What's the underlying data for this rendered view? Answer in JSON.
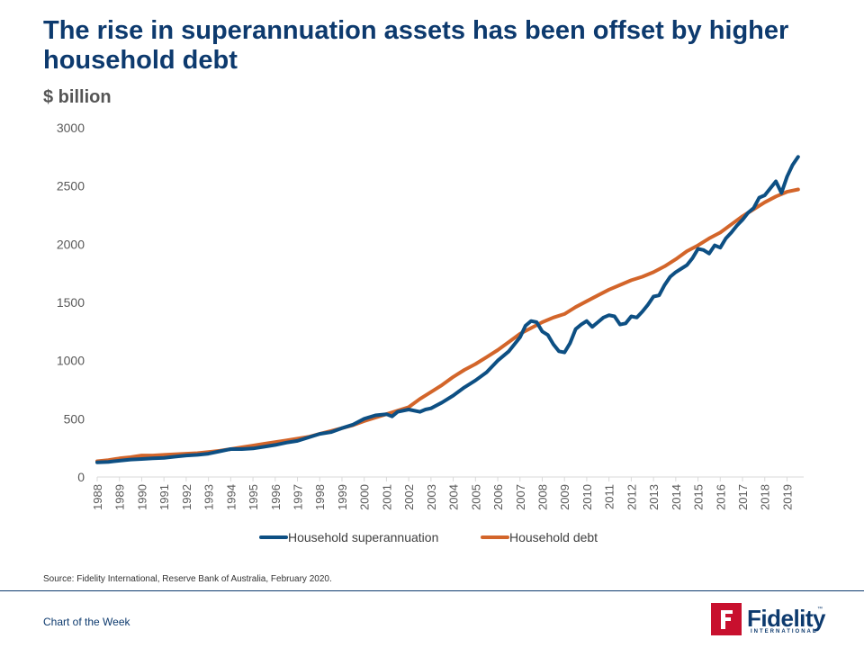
{
  "header": {
    "title": "The rise in superannuation assets has been offset by higher household debt",
    "subtitle": "$ billion"
  },
  "footer": {
    "source": "Source: Fidelity International, Reserve Bank of Australia, February 2020.",
    "label": "Chart of the Week",
    "logo_text": "Fidelity",
    "logo_subtext": "INTERNATIONAL",
    "logo_tm": "™"
  },
  "colors": {
    "title": "#0d3a6e",
    "super": "#0d4f83",
    "debt": "#d3652a",
    "axis": "#d9d9d9",
    "brand_red": "#c8102e"
  },
  "chart_data": {
    "type": "line",
    "ylim": [
      0,
      3000
    ],
    "xlim": [
      1988,
      2019.75
    ],
    "y_ticks": [
      "0",
      "500",
      "1000",
      "1500",
      "2000",
      "2500",
      "3000"
    ],
    "x_ticks": [
      "1988",
      "1989",
      "1990",
      "1991",
      "1992",
      "1993",
      "1994",
      "1995",
      "1996",
      "1997",
      "1998",
      "1999",
      "2000",
      "2001",
      "2002",
      "2003",
      "2004",
      "2005",
      "2006",
      "2007",
      "2008",
      "2009",
      "2010",
      "2011",
      "2012",
      "2013",
      "2014",
      "2015",
      "2016",
      "2017",
      "2018",
      "2019"
    ],
    "legend_position": "bottom",
    "series": [
      {
        "name": "Household superannuation",
        "color": "#0d4f83",
        "points": [
          [
            1988.0,
            125
          ],
          [
            1988.5,
            130
          ],
          [
            1989.0,
            140
          ],
          [
            1989.5,
            150
          ],
          [
            1990.0,
            155
          ],
          [
            1990.5,
            160
          ],
          [
            1991.0,
            165
          ],
          [
            1991.5,
            175
          ],
          [
            1992.0,
            185
          ],
          [
            1992.5,
            190
          ],
          [
            1993.0,
            200
          ],
          [
            1993.5,
            220
          ],
          [
            1994.0,
            240
          ],
          [
            1994.5,
            240
          ],
          [
            1995.0,
            245
          ],
          [
            1995.5,
            260
          ],
          [
            1996.0,
            275
          ],
          [
            1996.5,
            295
          ],
          [
            1997.0,
            310
          ],
          [
            1997.5,
            340
          ],
          [
            1998.0,
            370
          ],
          [
            1998.5,
            385
          ],
          [
            1999.0,
            420
          ],
          [
            1999.5,
            450
          ],
          [
            2000.0,
            500
          ],
          [
            2000.5,
            530
          ],
          [
            2001.0,
            540
          ],
          [
            2001.25,
            520
          ],
          [
            2001.5,
            560
          ],
          [
            2002.0,
            580
          ],
          [
            2002.5,
            560
          ],
          [
            2002.75,
            580
          ],
          [
            2003.0,
            590
          ],
          [
            2003.5,
            640
          ],
          [
            2004.0,
            700
          ],
          [
            2004.5,
            770
          ],
          [
            2005.0,
            830
          ],
          [
            2005.5,
            900
          ],
          [
            2006.0,
            1000
          ],
          [
            2006.5,
            1080
          ],
          [
            2007.0,
            1200
          ],
          [
            2007.25,
            1300
          ],
          [
            2007.5,
            1340
          ],
          [
            2007.75,
            1330
          ],
          [
            2008.0,
            1250
          ],
          [
            2008.25,
            1220
          ],
          [
            2008.5,
            1140
          ],
          [
            2008.75,
            1080
          ],
          [
            2009.0,
            1070
          ],
          [
            2009.25,
            1150
          ],
          [
            2009.5,
            1270
          ],
          [
            2009.75,
            1310
          ],
          [
            2010.0,
            1340
          ],
          [
            2010.25,
            1290
          ],
          [
            2010.5,
            1330
          ],
          [
            2010.75,
            1370
          ],
          [
            2011.0,
            1390
          ],
          [
            2011.25,
            1380
          ],
          [
            2011.5,
            1310
          ],
          [
            2011.75,
            1320
          ],
          [
            2012.0,
            1380
          ],
          [
            2012.25,
            1370
          ],
          [
            2012.5,
            1420
          ],
          [
            2012.75,
            1480
          ],
          [
            2013.0,
            1550
          ],
          [
            2013.25,
            1560
          ],
          [
            2013.5,
            1650
          ],
          [
            2013.75,
            1720
          ],
          [
            2014.0,
            1760
          ],
          [
            2014.25,
            1790
          ],
          [
            2014.5,
            1820
          ],
          [
            2014.75,
            1880
          ],
          [
            2015.0,
            1960
          ],
          [
            2015.25,
            1950
          ],
          [
            2015.5,
            1920
          ],
          [
            2015.75,
            1990
          ],
          [
            2016.0,
            1970
          ],
          [
            2016.25,
            2050
          ],
          [
            2016.5,
            2100
          ],
          [
            2016.75,
            2160
          ],
          [
            2017.0,
            2210
          ],
          [
            2017.25,
            2270
          ],
          [
            2017.5,
            2310
          ],
          [
            2017.75,
            2400
          ],
          [
            2018.0,
            2420
          ],
          [
            2018.25,
            2480
          ],
          [
            2018.5,
            2540
          ],
          [
            2018.75,
            2440
          ],
          [
            2019.0,
            2580
          ],
          [
            2019.25,
            2680
          ],
          [
            2019.5,
            2750
          ]
        ]
      },
      {
        "name": "Household debt",
        "color": "#d3652a",
        "points": [
          [
            1988.0,
            135
          ],
          [
            1988.5,
            145
          ],
          [
            1989.0,
            160
          ],
          [
            1989.5,
            170
          ],
          [
            1990.0,
            185
          ],
          [
            1990.5,
            185
          ],
          [
            1991.0,
            190
          ],
          [
            1991.5,
            195
          ],
          [
            1992.0,
            200
          ],
          [
            1992.5,
            205
          ],
          [
            1993.0,
            215
          ],
          [
            1993.5,
            225
          ],
          [
            1994.0,
            240
          ],
          [
            1994.5,
            255
          ],
          [
            1995.0,
            270
          ],
          [
            1995.5,
            285
          ],
          [
            1996.0,
            300
          ],
          [
            1996.5,
            315
          ],
          [
            1997.0,
            330
          ],
          [
            1997.5,
            345
          ],
          [
            1998.0,
            370
          ],
          [
            1998.5,
            395
          ],
          [
            1999.0,
            420
          ],
          [
            1999.5,
            445
          ],
          [
            2000.0,
            480
          ],
          [
            2000.5,
            510
          ],
          [
            2001.0,
            540
          ],
          [
            2001.5,
            570
          ],
          [
            2002.0,
            600
          ],
          [
            2002.5,
            670
          ],
          [
            2003.0,
            730
          ],
          [
            2003.5,
            790
          ],
          [
            2004.0,
            860
          ],
          [
            2004.5,
            920
          ],
          [
            2005.0,
            970
          ],
          [
            2005.5,
            1030
          ],
          [
            2006.0,
            1090
          ],
          [
            2006.5,
            1160
          ],
          [
            2007.0,
            1230
          ],
          [
            2007.5,
            1280
          ],
          [
            2008.0,
            1330
          ],
          [
            2008.5,
            1370
          ],
          [
            2009.0,
            1400
          ],
          [
            2009.5,
            1460
          ],
          [
            2010.0,
            1510
          ],
          [
            2010.5,
            1560
          ],
          [
            2011.0,
            1610
          ],
          [
            2011.5,
            1650
          ],
          [
            2012.0,
            1690
          ],
          [
            2012.5,
            1720
          ],
          [
            2013.0,
            1760
          ],
          [
            2013.5,
            1810
          ],
          [
            2014.0,
            1870
          ],
          [
            2014.5,
            1940
          ],
          [
            2015.0,
            1990
          ],
          [
            2015.5,
            2050
          ],
          [
            2016.0,
            2100
          ],
          [
            2016.5,
            2170
          ],
          [
            2017.0,
            2240
          ],
          [
            2017.5,
            2300
          ],
          [
            2018.0,
            2360
          ],
          [
            2018.5,
            2410
          ],
          [
            2019.0,
            2450
          ],
          [
            2019.5,
            2470
          ]
        ]
      }
    ]
  }
}
